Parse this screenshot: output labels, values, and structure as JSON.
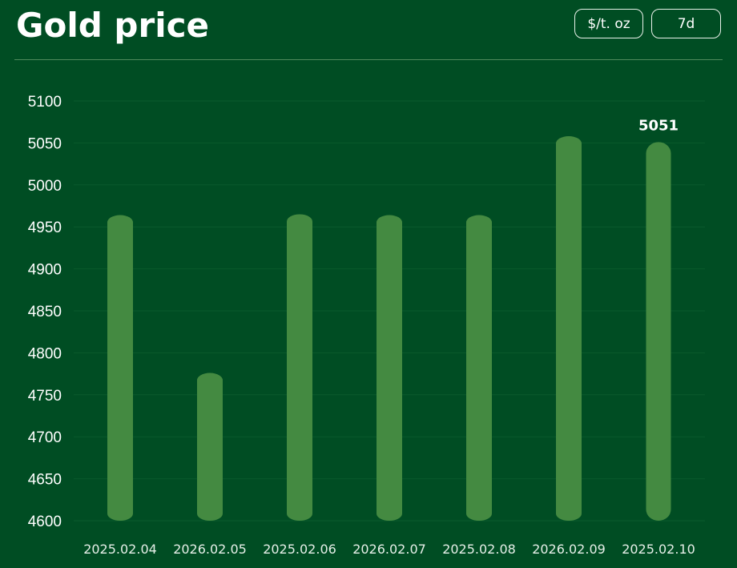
{
  "header": {
    "title": "Gold price",
    "unit_label": "$/t. oz",
    "range_label": "7d"
  },
  "colors": {
    "background": "#004d23",
    "bar": "#448a41",
    "grid": "#0a5a2c"
  },
  "chart_data": {
    "type": "bar",
    "categories": [
      "2025.02.04",
      "2026.02.05",
      "2025.02.06",
      "2026.02.07",
      "2025.02.08",
      "2026.02.09",
      "2025.02.10"
    ],
    "values": [
      4964,
      4776,
      4965,
      4964,
      4964,
      5058,
      5051
    ],
    "ylim": [
      4600,
      5100
    ],
    "yticks": [
      4600,
      4650,
      4700,
      4750,
      4800,
      4850,
      4900,
      4950,
      5000,
      5050,
      5100
    ],
    "grid": true,
    "data_labels": [
      {
        "index": 6,
        "text": "5051"
      }
    ],
    "title": "",
    "xlabel": "",
    "ylabel": ""
  }
}
